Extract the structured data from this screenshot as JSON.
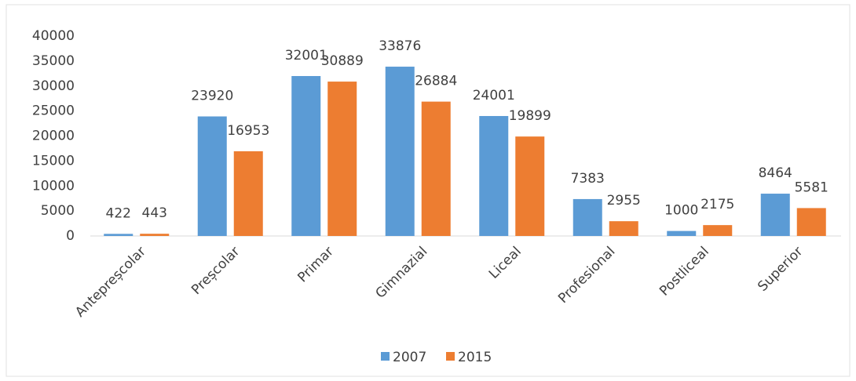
{
  "chart_data": {
    "type": "bar",
    "categories": [
      "Antepreșcolar",
      "Preșcolar",
      "Primar",
      "Gimnazial",
      "Liceal",
      "Profesional",
      "Postliceal",
      "Superior"
    ],
    "series": [
      {
        "name": "2007",
        "color": "#5b9bd5",
        "values": [
          422,
          23920,
          32001,
          33876,
          24001,
          7383,
          1000,
          8464
        ]
      },
      {
        "name": "2015",
        "color": "#ed7d31",
        "values": [
          443,
          16953,
          30889,
          26884,
          19899,
          2955,
          2175,
          5581
        ]
      }
    ],
    "ylim": [
      0,
      40000
    ],
    "yticks": [
      0,
      5000,
      10000,
      15000,
      20000,
      25000,
      30000,
      35000,
      40000
    ],
    "grid": false,
    "legend": "bottom"
  }
}
